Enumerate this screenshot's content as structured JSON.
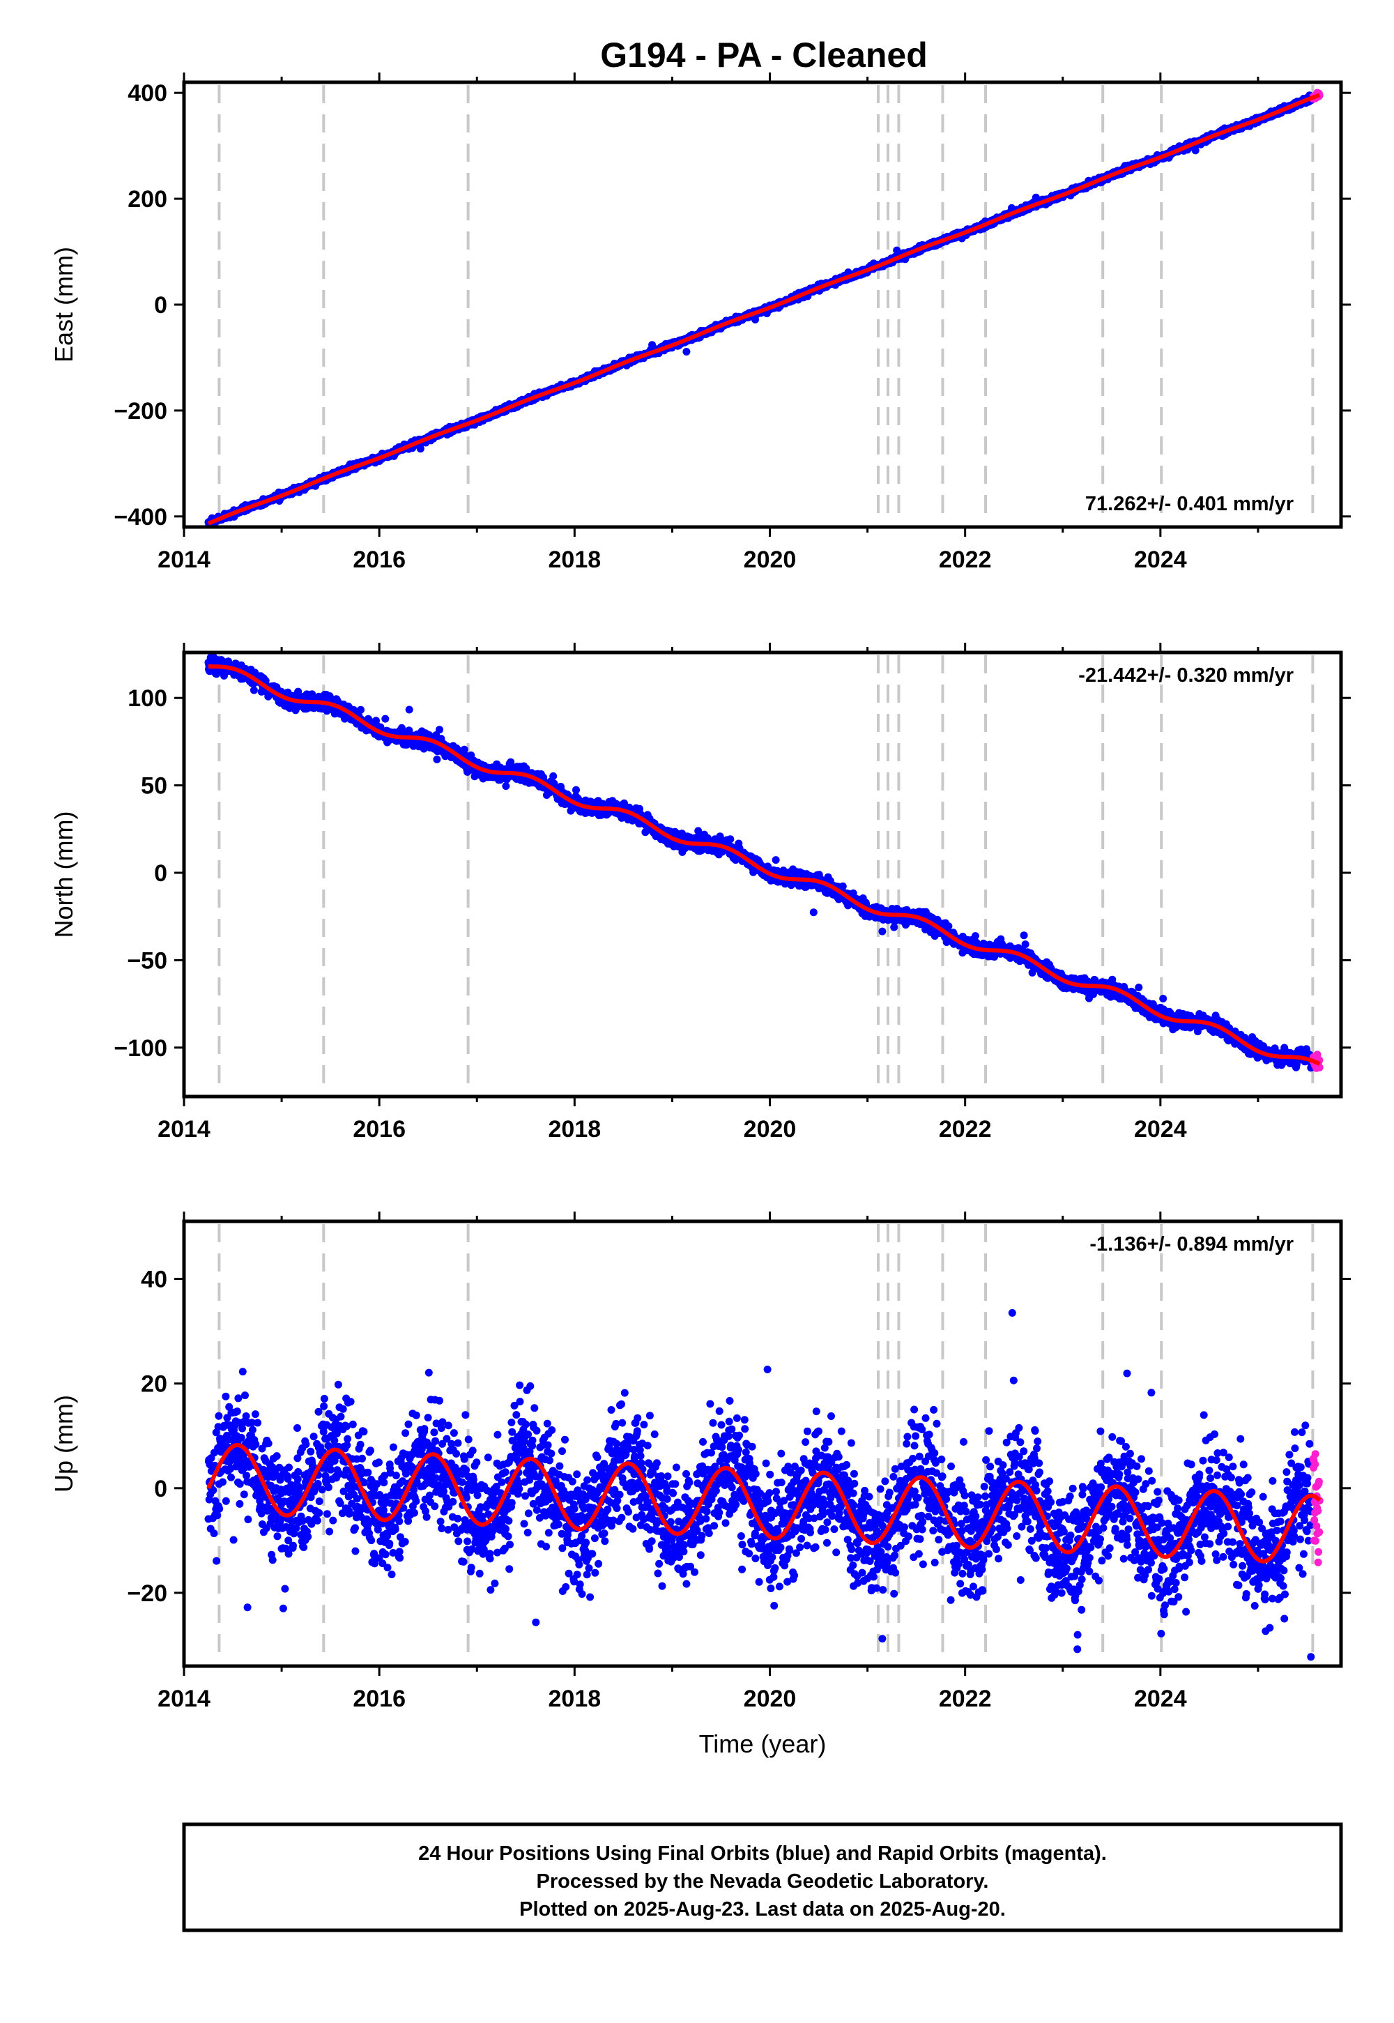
{
  "title": "G194  - PA - Cleaned",
  "xlabel": "Time (year)",
  "caption_lines": [
    "24 Hour Positions Using Final Orbits (blue) and Rapid Orbits (magenta).",
    "Processed by the Nevada Geodetic Laboratory.",
    "Plotted on 2025-Aug-23. Last data on 2025-Aug-20."
  ],
  "colors": {
    "final_orbits": "#0000ff",
    "rapid_orbits": "#ff1fcf",
    "model_fit": "#ff0000",
    "step_lines": "#c8c8c8"
  },
  "chart_data": [
    {
      "type": "scatter",
      "panel": "east",
      "ylabel": "East (mm)",
      "xlim": [
        2014.0,
        2025.85
      ],
      "ylim": [
        -420,
        420
      ],
      "xticks": [
        "2014",
        "2016",
        "2018",
        "2020",
        "2022",
        "2024"
      ],
      "yticks": [
        "400",
        "200",
        "0",
        "−200",
        "−400"
      ],
      "rate_text": "71.262+/- 0.401 mm/yr",
      "rate_position": "bottom-right",
      "grid": false,
      "start_value_mm": -413,
      "end_value_mm": 395,
      "trend_mm_per_yr": 71.262,
      "seasonal_amplitude_mm": 1,
      "noise_mm": 2.5,
      "series": [
        {
          "name": "Final Orbits (blue)",
          "x_range": [
            2014.25,
            2025.55
          ]
        },
        {
          "name": "Rapid Orbits (magenta)",
          "x_range": [
            2025.56,
            2025.63
          ]
        }
      ]
    },
    {
      "type": "scatter",
      "panel": "north",
      "ylabel": "North (mm)",
      "xlim": [
        2014.0,
        2025.85
      ],
      "ylim": [
        -128,
        126
      ],
      "xticks": [
        "2014",
        "2016",
        "2018",
        "2020",
        "2022",
        "2024"
      ],
      "yticks": [
        "100",
        "50",
        "0",
        "−50",
        "−100"
      ],
      "rate_text": "-21.442+/- 0.320 mm/yr",
      "rate_position": "top-right",
      "grid": false,
      "start_value_mm": 119,
      "end_value_mm": -112,
      "trend_mm_per_yr": -21.442,
      "seasonal_amplitude_mm": 3,
      "noise_mm": 2,
      "series": [
        {
          "name": "Final Orbits (blue)",
          "x_range": [
            2014.25,
            2025.55
          ]
        },
        {
          "name": "Rapid Orbits (magenta)",
          "x_range": [
            2025.56,
            2025.63
          ]
        }
      ]
    },
    {
      "type": "scatter",
      "panel": "up",
      "ylabel": "Up (mm)",
      "xlim": [
        2014.0,
        2025.85
      ],
      "ylim": [
        -34,
        51
      ],
      "xticks": [
        "2014",
        "2016",
        "2018",
        "2020",
        "2022",
        "2024"
      ],
      "yticks": [
        "40",
        "20",
        "0",
        "−20"
      ],
      "rate_text": "-1.136+/- 0.894 mm/yr",
      "rate_position": "top-right",
      "grid": false,
      "start_value_mm": 2,
      "end_value_mm": -8,
      "trend_mm_per_yr": -1.136,
      "seasonal_amplitude_mm": 6.5,
      "noise_mm": 5.5,
      "series": [
        {
          "name": "Final Orbits (blue)",
          "x_range": [
            2014.25,
            2025.55
          ]
        },
        {
          "name": "Rapid Orbits (magenta)",
          "x_range": [
            2025.56,
            2025.63
          ]
        }
      ]
    }
  ],
  "step_times_yr": [
    2014.36,
    2015.43,
    2016.91,
    2021.11,
    2021.21,
    2021.32,
    2021.77,
    2022.21,
    2023.41,
    2024.01,
    2025.56
  ]
}
